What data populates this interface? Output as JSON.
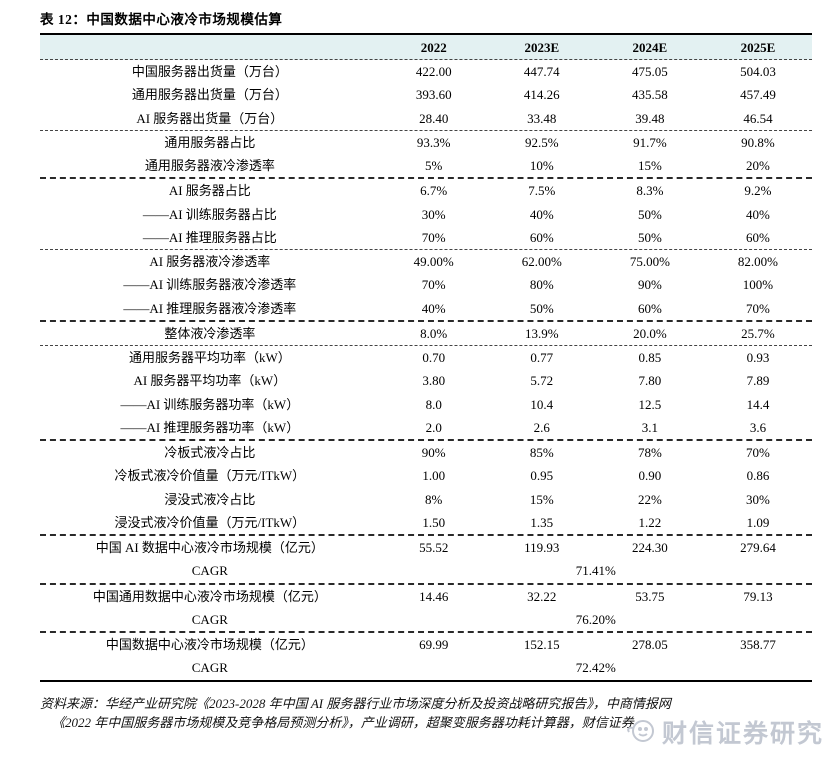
{
  "page": {
    "title": "表 12：中国数据中心液冷市场规模估算"
  },
  "table": {
    "header": [
      "2022",
      "2023E",
      "2024E",
      "2025E"
    ],
    "rows": [
      {
        "label": "中国服务器出货量（万台）",
        "values": [
          "422.00",
          "447.74",
          "475.05",
          "504.03"
        ],
        "divider": "none"
      },
      {
        "label": "通用服务器出货量（万台）",
        "values": [
          "393.60",
          "414.26",
          "435.58",
          "457.49"
        ],
        "divider": "none"
      },
      {
        "label": "AI 服务器出货量（万台）",
        "values": [
          "28.40",
          "33.48",
          "39.48",
          "46.54"
        ],
        "divider": "dashed"
      },
      {
        "label": "通用服务器占比",
        "values": [
          "93.3%",
          "92.5%",
          "91.7%",
          "90.8%"
        ],
        "divider": "none"
      },
      {
        "label": "通用服务器液冷渗透率",
        "values": [
          "5%",
          "10%",
          "15%",
          "20%"
        ],
        "divider": "heavy"
      },
      {
        "label": "AI 服务器占比",
        "values": [
          "6.7%",
          "7.5%",
          "8.3%",
          "9.2%"
        ],
        "divider": "none"
      },
      {
        "label": "——AI 训练服务器占比",
        "values": [
          "30%",
          "40%",
          "50%",
          "40%"
        ],
        "divider": "none"
      },
      {
        "label": "——AI 推理服务器占比",
        "values": [
          "70%",
          "60%",
          "50%",
          "60%"
        ],
        "divider": "dashed"
      },
      {
        "label": "AI 服务器液冷渗透率",
        "values": [
          "49.00%",
          "62.00%",
          "75.00%",
          "82.00%"
        ],
        "divider": "none"
      },
      {
        "label": "——AI 训练服务器液冷渗透率",
        "values": [
          "70%",
          "80%",
          "90%",
          "100%"
        ],
        "divider": "none"
      },
      {
        "label": "——AI 推理服务器液冷渗透率",
        "values": [
          "40%",
          "50%",
          "60%",
          "70%"
        ],
        "divider": "heavy"
      },
      {
        "label": "整体液冷渗透率",
        "values": [
          "8.0%",
          "13.9%",
          "20.0%",
          "25.7%"
        ],
        "divider": "dashed"
      },
      {
        "label": "通用服务器平均功率（kW）",
        "values": [
          "0.70",
          "0.77",
          "0.85",
          "0.93"
        ],
        "divider": "none"
      },
      {
        "label": "AI 服务器平均功率（kW）",
        "values": [
          "3.80",
          "5.72",
          "7.80",
          "7.89"
        ],
        "divider": "none"
      },
      {
        "label": "——AI 训练服务器功率（kW）",
        "values": [
          "8.0",
          "10.4",
          "12.5",
          "14.4"
        ],
        "divider": "none"
      },
      {
        "label": "——AI 推理服务器功率（kW）",
        "values": [
          "2.0",
          "2.6",
          "3.1",
          "3.6"
        ],
        "divider": "heavy"
      },
      {
        "label": "冷板式液冷占比",
        "values": [
          "90%",
          "85%",
          "78%",
          "70%"
        ],
        "divider": "none"
      },
      {
        "label": "冷板式液冷价值量（万元/ITkW）",
        "values": [
          "1.00",
          "0.95",
          "0.90",
          "0.86"
        ],
        "divider": "none"
      },
      {
        "label": "浸没式液冷占比",
        "values": [
          "8%",
          "15%",
          "22%",
          "30%"
        ],
        "divider": "none"
      },
      {
        "label": "浸没式液冷价值量（万元/ITkW）",
        "values": [
          "1.50",
          "1.35",
          "1.22",
          "1.09"
        ],
        "divider": "heavy"
      },
      {
        "label": "中国 AI 数据中心液冷市场规模（亿元）",
        "values": [
          "55.52",
          "119.93",
          "224.30",
          "279.64"
        ],
        "divider": "none"
      },
      {
        "label": "CAGR",
        "span_value": "71.41%",
        "divider": "heavy"
      },
      {
        "label": "中国通用数据中心液冷市场规模（亿元）",
        "values": [
          "14.46",
          "32.22",
          "53.75",
          "79.13"
        ],
        "divider": "none"
      },
      {
        "label": "CAGR",
        "span_value": "76.20%",
        "divider": "heavy"
      },
      {
        "label": "中国数据中心液冷市场规模（亿元）",
        "values": [
          "69.99",
          "152.15",
          "278.05",
          "358.77"
        ],
        "divider": "none"
      },
      {
        "label": "CAGR",
        "span_value": "72.42%",
        "divider": "none"
      }
    ]
  },
  "footer": {
    "source_line1": "资料来源：华经产业研究院《2023-2028 年中国 AI 服务器行业市场深度分析及投资战略研究报告》，中商情报网",
    "source_line2": "《2022 年中国服务器市场规模及竞争格局预测分析》，产业调研，超聚变服务器功耗计算器，财信证券"
  },
  "watermark": {
    "text": "财信证券研究",
    "icon": "magnifier-face-logo"
  },
  "colors": {
    "header_bg": "#e3f1f2",
    "border": "#000000",
    "watermark": "#c3c8d2"
  }
}
